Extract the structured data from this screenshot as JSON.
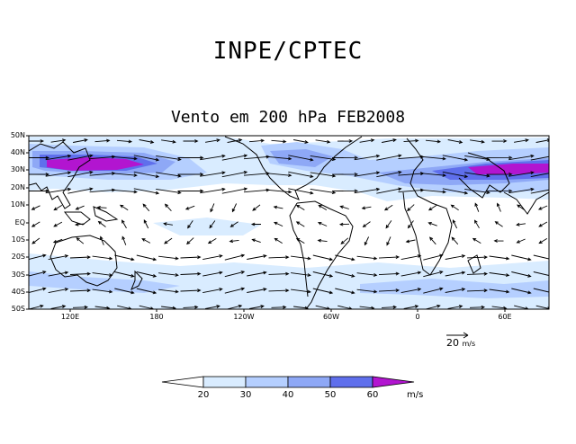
{
  "header": {
    "org": "INPE/CPTEC"
  },
  "map": {
    "title": "Vento em 200 hPa FEB2008",
    "lat_labels": [
      "50N",
      "40N",
      "30N",
      "20N",
      "10N",
      "EQ",
      "10S",
      "20S",
      "30S",
      "40S",
      "50S"
    ],
    "lon_labels": [
      "120E",
      "180",
      "120W",
      "60W",
      "0",
      "60E"
    ],
    "reference_vector": {
      "value": "20",
      "unit": "m/s"
    },
    "legend": {
      "thresholds": [
        "20",
        "30",
        "40",
        "50",
        "60"
      ],
      "unit": "m/s",
      "colors": [
        "#ffffff",
        "#d9ecff",
        "#b5cfff",
        "#8ea8f6",
        "#5f6fec",
        "#b215d0"
      ]
    }
  }
}
